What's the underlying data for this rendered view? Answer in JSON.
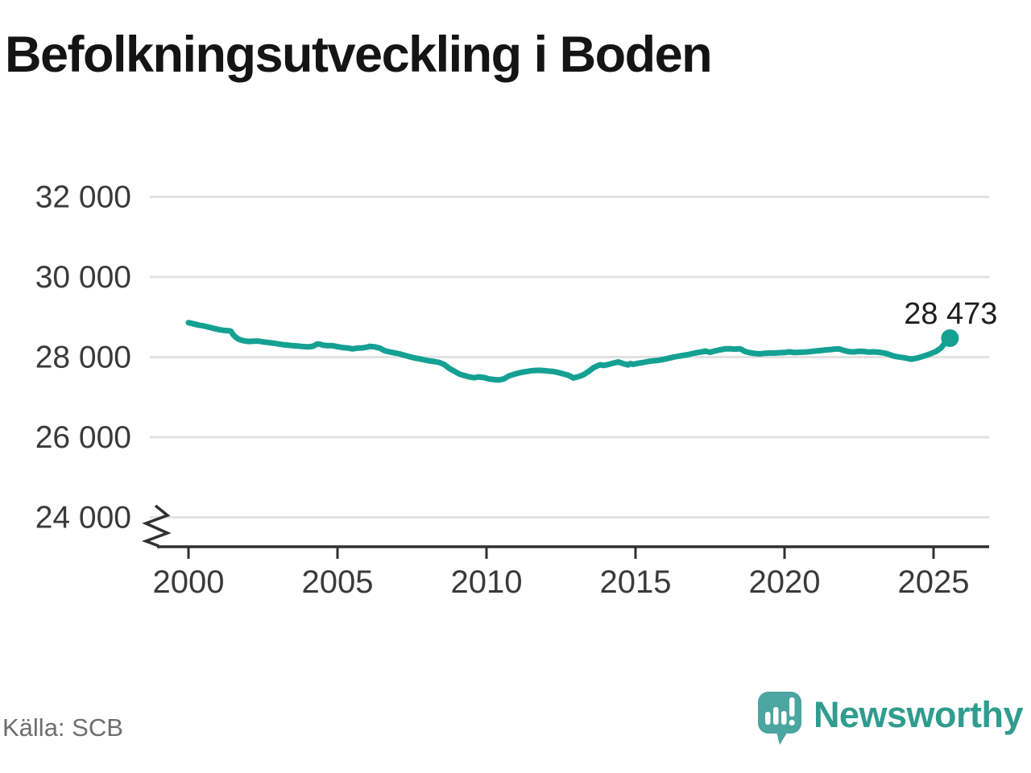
{
  "title": "Befolkningsutveckling i Boden",
  "source": "Källa: SCB",
  "branding": {
    "name": "Newsworthy",
    "icon": "bar-chart-speech-bubble-icon"
  },
  "colors": {
    "background": "#FFFFFF",
    "line": "#14A093",
    "grid": "#E2E2E2",
    "axis": "#303030",
    "tick_text": "#3A3A3A",
    "title_text": "#141414",
    "annotation_text": "#1E1E1E",
    "source_text": "#6E6E6E",
    "brand_icon": "#4BA5A0",
    "brand_bars": "#FFFFFF",
    "brand_text": "#2F9C8E"
  },
  "chart_data": {
    "type": "line",
    "title": "Befolkningsutveckling i Boden",
    "xlabel": "",
    "ylabel": "",
    "grid": "horizontal",
    "legend": "none",
    "axis_break_bottom_left": true,
    "x_ticks": [
      2000,
      2005,
      2010,
      2015,
      2020,
      2025
    ],
    "y_ticks": [
      24000,
      26000,
      28000,
      30000,
      32000
    ],
    "y_tick_labels": [
      "24 000",
      "26 000",
      "28 000",
      "30 000",
      "32 000"
    ],
    "xlim": [
      1998.7,
      2026.9
    ],
    "ylim": [
      23550,
      32450
    ],
    "last_point_label": "28 473",
    "last_value": 28473,
    "series": [
      {
        "points": [
          [
            2000.0,
            28860
          ],
          [
            2000.17,
            28830
          ],
          [
            2000.33,
            28800
          ],
          [
            2000.5,
            28780
          ],
          [
            2000.67,
            28750
          ],
          [
            2000.83,
            28720
          ],
          [
            2001.0,
            28690
          ],
          [
            2001.17,
            28670
          ],
          [
            2001.33,
            28660
          ],
          [
            2001.42,
            28650
          ],
          [
            2001.5,
            28560
          ],
          [
            2001.58,
            28500
          ],
          [
            2001.67,
            28450
          ],
          [
            2001.83,
            28410
          ],
          [
            2002.0,
            28390
          ],
          [
            2002.17,
            28395
          ],
          [
            2002.33,
            28400
          ],
          [
            2002.5,
            28380
          ],
          [
            2002.67,
            28365
          ],
          [
            2002.83,
            28350
          ],
          [
            2003.0,
            28330
          ],
          [
            2003.17,
            28310
          ],
          [
            2003.33,
            28300
          ],
          [
            2003.5,
            28285
          ],
          [
            2003.67,
            28275
          ],
          [
            2003.83,
            28265
          ],
          [
            2004.0,
            28255
          ],
          [
            2004.17,
            28270
          ],
          [
            2004.33,
            28330
          ],
          [
            2004.42,
            28320
          ],
          [
            2004.5,
            28300
          ],
          [
            2004.67,
            28285
          ],
          [
            2004.83,
            28285
          ],
          [
            2005.0,
            28260
          ],
          [
            2005.17,
            28240
          ],
          [
            2005.33,
            28230
          ],
          [
            2005.5,
            28205
          ],
          [
            2005.67,
            28225
          ],
          [
            2005.83,
            28230
          ],
          [
            2006.0,
            28250
          ],
          [
            2006.08,
            28270
          ],
          [
            2006.25,
            28255
          ],
          [
            2006.42,
            28225
          ],
          [
            2006.58,
            28160
          ],
          [
            2006.75,
            28130
          ],
          [
            2006.92,
            28105
          ],
          [
            2007.08,
            28080
          ],
          [
            2007.25,
            28045
          ],
          [
            2007.42,
            28010
          ],
          [
            2007.58,
            27980
          ],
          [
            2007.75,
            27955
          ],
          [
            2007.92,
            27930
          ],
          [
            2008.08,
            27905
          ],
          [
            2008.25,
            27890
          ],
          [
            2008.42,
            27865
          ],
          [
            2008.58,
            27815
          ],
          [
            2008.75,
            27720
          ],
          [
            2008.92,
            27650
          ],
          [
            2009.08,
            27580
          ],
          [
            2009.25,
            27540
          ],
          [
            2009.42,
            27505
          ],
          [
            2009.58,
            27485
          ],
          [
            2009.75,
            27505
          ],
          [
            2009.92,
            27490
          ],
          [
            2010.08,
            27455
          ],
          [
            2010.25,
            27440
          ],
          [
            2010.42,
            27430
          ],
          [
            2010.58,
            27455
          ],
          [
            2010.75,
            27530
          ],
          [
            2010.92,
            27570
          ],
          [
            2011.08,
            27605
          ],
          [
            2011.25,
            27630
          ],
          [
            2011.42,
            27650
          ],
          [
            2011.58,
            27665
          ],
          [
            2011.75,
            27670
          ],
          [
            2011.92,
            27665
          ],
          [
            2012.08,
            27650
          ],
          [
            2012.25,
            27640
          ],
          [
            2012.42,
            27615
          ],
          [
            2012.58,
            27580
          ],
          [
            2012.75,
            27545
          ],
          [
            2012.92,
            27480
          ],
          [
            2013.08,
            27510
          ],
          [
            2013.25,
            27560
          ],
          [
            2013.42,
            27640
          ],
          [
            2013.58,
            27730
          ],
          [
            2013.75,
            27790
          ],
          [
            2013.83,
            27810
          ],
          [
            2013.92,
            27790
          ],
          [
            2014.08,
            27815
          ],
          [
            2014.25,
            27850
          ],
          [
            2014.42,
            27880
          ],
          [
            2014.58,
            27840
          ],
          [
            2014.75,
            27805
          ],
          [
            2014.83,
            27840
          ],
          [
            2014.92,
            27820
          ],
          [
            2015.08,
            27845
          ],
          [
            2015.25,
            27865
          ],
          [
            2015.42,
            27890
          ],
          [
            2015.58,
            27905
          ],
          [
            2015.75,
            27920
          ],
          [
            2015.92,
            27940
          ],
          [
            2016.08,
            27965
          ],
          [
            2016.25,
            27995
          ],
          [
            2016.42,
            28020
          ],
          [
            2016.58,
            28040
          ],
          [
            2016.75,
            28060
          ],
          [
            2016.92,
            28090
          ],
          [
            2017.08,
            28115
          ],
          [
            2017.25,
            28135
          ],
          [
            2017.33,
            28150
          ],
          [
            2017.5,
            28120
          ],
          [
            2017.67,
            28155
          ],
          [
            2017.83,
            28180
          ],
          [
            2018.0,
            28205
          ],
          [
            2018.17,
            28210
          ],
          [
            2018.33,
            28200
          ],
          [
            2018.5,
            28210
          ],
          [
            2018.58,
            28180
          ],
          [
            2018.67,
            28140
          ],
          [
            2018.83,
            28110
          ],
          [
            2019.0,
            28090
          ],
          [
            2019.17,
            28080
          ],
          [
            2019.33,
            28095
          ],
          [
            2019.5,
            28100
          ],
          [
            2019.67,
            28100
          ],
          [
            2019.83,
            28110
          ],
          [
            2020.0,
            28115
          ],
          [
            2020.17,
            28130
          ],
          [
            2020.33,
            28115
          ],
          [
            2020.5,
            28120
          ],
          [
            2020.67,
            28125
          ],
          [
            2020.83,
            28135
          ],
          [
            2021.0,
            28150
          ],
          [
            2021.17,
            28160
          ],
          [
            2021.33,
            28175
          ],
          [
            2021.5,
            28185
          ],
          [
            2021.67,
            28200
          ],
          [
            2021.83,
            28205
          ],
          [
            2022.0,
            28165
          ],
          [
            2022.17,
            28135
          ],
          [
            2022.33,
            28130
          ],
          [
            2022.5,
            28145
          ],
          [
            2022.67,
            28140
          ],
          [
            2022.83,
            28125
          ],
          [
            2023.0,
            28130
          ],
          [
            2023.17,
            28120
          ],
          [
            2023.33,
            28105
          ],
          [
            2023.5,
            28070
          ],
          [
            2023.67,
            28025
          ],
          [
            2023.83,
            28005
          ],
          [
            2024.0,
            27985
          ],
          [
            2024.17,
            27960
          ],
          [
            2024.25,
            27950
          ],
          [
            2024.42,
            27970
          ],
          [
            2024.58,
            28005
          ],
          [
            2024.75,
            28045
          ],
          [
            2024.92,
            28090
          ],
          [
            2025.08,
            28140
          ],
          [
            2025.25,
            28230
          ],
          [
            2025.42,
            28390
          ],
          [
            2025.55,
            28473
          ]
        ]
      }
    ]
  }
}
